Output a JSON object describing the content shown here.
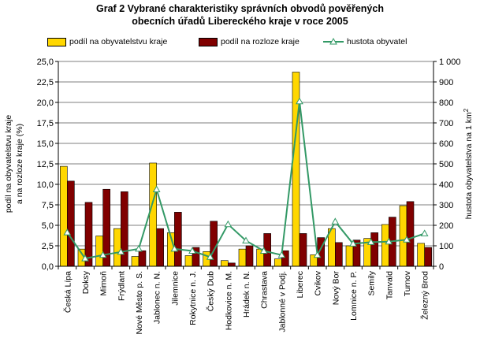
{
  "chart_data": {
    "type": "bar",
    "title_line1": "Graf 2 Vybrané charakteristiky správních obvodů pověřených",
    "title_line2": "obecních úřadů Libereckého kraje v roce 2005",
    "categories": [
      "Česká Lípa",
      "Doksy",
      "Mimoň",
      "Frýdlant",
      "Nové Město p. S.",
      "Jablonec n. N.",
      "Jilemnice",
      "Rokytnice n. J.",
      "Český Dub",
      "Hodkovice n. M.",
      "Hrádek n. N.",
      "Chrastava",
      "Jablonné v Podj.",
      "Liberec",
      "Cvikov",
      "Nový Bor",
      "Lomnice n. P.",
      "Semily",
      "Tanvald",
      "Turnov",
      "Železný Brod"
    ],
    "series": [
      {
        "name": "podíl na obyvatelstvu kraje",
        "type": "bar",
        "axis": "left",
        "color": "#ffd700",
        "values": [
          12.2,
          2.1,
          3.7,
          4.6,
          1.2,
          12.6,
          4.1,
          1.3,
          1.8,
          0.7,
          2.1,
          2.1,
          0.9,
          23.7,
          1.4,
          4.6,
          2.5,
          3.4,
          5.1,
          7.4,
          2.8
        ]
      },
      {
        "name": "podíl na rozloze kraje",
        "type": "bar",
        "axis": "left",
        "color": "#800000",
        "values": [
          10.4,
          7.8,
          9.4,
          9.1,
          1.9,
          4.6,
          6.6,
          2.3,
          5.5,
          0.4,
          2.5,
          4.0,
          1.9,
          4.0,
          3.5,
          2.9,
          3.2,
          4.1,
          6.0,
          7.9,
          2.3
        ]
      },
      {
        "name": "hustota obyvatel",
        "type": "line",
        "axis": "right",
        "color": "#339966",
        "values": [
          165,
          38,
          55,
          70,
          85,
          375,
          85,
          75,
          45,
          205,
          125,
          75,
          55,
          805,
          55,
          218,
          110,
          118,
          120,
          130,
          160
        ]
      }
    ],
    "ylabel_left_line1": "podíl na obyvatelstvu kraje",
    "ylabel_left_line2": "a na rozloze kraje (%)",
    "ylabel_right": "hustota obyvatelstva na 1 km",
    "ylabel_right_sup": "2",
    "ylim_left": [
      0,
      25
    ],
    "ylim_right": [
      0,
      1000
    ],
    "yticks_left": [
      "0,0",
      "2,5",
      "5,0",
      "7,5",
      "10,0",
      "12,5",
      "15,0",
      "17,5",
      "20,0",
      "22,5",
      "25,0"
    ],
    "yticks_right": [
      "0",
      "100",
      "200",
      "300",
      "400",
      "500",
      "600",
      "700",
      "800",
      "900",
      "1 000"
    ],
    "legend_position": "top"
  }
}
